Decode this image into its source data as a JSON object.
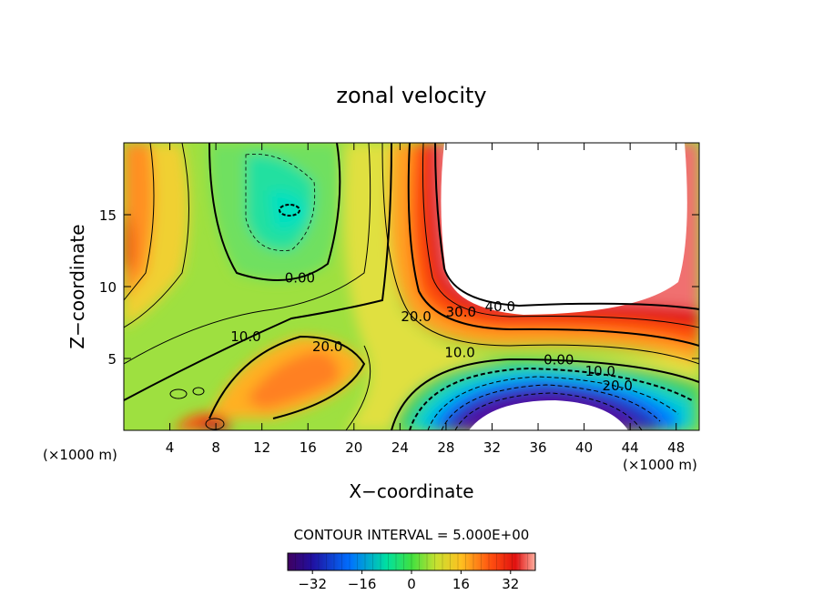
{
  "chart_data": {
    "type": "heatmap",
    "title": "zonal velocity",
    "xlabel": "X−coordinate",
    "ylabel": "Z−coordinate",
    "x_unit_left": "(×1000 m)",
    "x_unit_right": "(×1000 m)",
    "xlim": [
      0,
      50
    ],
    "ylim": [
      0,
      20
    ],
    "x_ticks": [
      4,
      8,
      12,
      16,
      20,
      24,
      28,
      32,
      36,
      40,
      44,
      48
    ],
    "y_ticks": [
      5,
      10,
      15
    ],
    "contour_interval_text": "CONTOUR INTERVAL = 5.000E+00",
    "colorbar": {
      "min": -40,
      "max": 40,
      "ticks": [
        -32,
        -16,
        0,
        16,
        32
      ],
      "tick_labels": [
        "−32",
        "−16",
        "0",
        "16",
        "32"
      ]
    },
    "contour_labels": [
      {
        "text": "0.00",
        "x": 15.3,
        "y": 10.3
      },
      {
        "text": "10.0",
        "x": 10.6,
        "y": 6.2
      },
      {
        "text": "20.0",
        "x": 17.7,
        "y": 5.5
      },
      {
        "text": "20.0",
        "x": 25.4,
        "y": 7.6
      },
      {
        "text": "30.0",
        "x": 29.3,
        "y": 7.9
      },
      {
        "text": "40.0",
        "x": 32.7,
        "y": 8.3
      },
      {
        "text": "10.0",
        "x": 29.2,
        "y": 5.1
      },
      {
        "text": "0.00",
        "x": 37.8,
        "y": 4.6
      },
      {
        "text": "10.0",
        "x": 41.4,
        "y": 3.8
      },
      {
        "text": "20.0",
        "x": 42.9,
        "y": 2.8
      }
    ],
    "white_regions": [
      "u > 40 (upper right)",
      "u < -40 (bottom center)"
    ]
  }
}
